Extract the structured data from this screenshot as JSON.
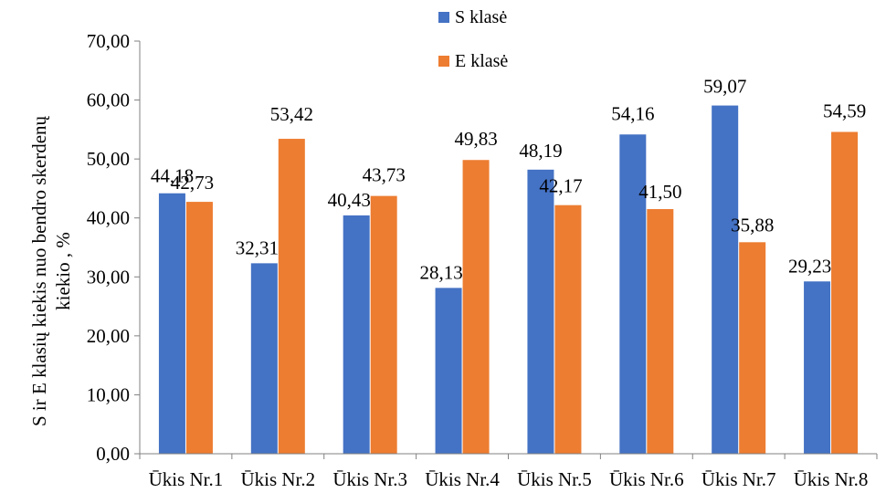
{
  "chart_data": {
    "type": "bar",
    "title": "",
    "xlabel": "",
    "ylabel": "S ir E klasių kiekis nuo bendro skerdenų kiekio , %",
    "ylabel_lines": [
      "S ir E klasių kiekis nuo bendro skerdenų",
      "kiekio , %"
    ],
    "ylim": [
      0,
      70
    ],
    "yticks": [
      0,
      10,
      20,
      30,
      40,
      50,
      60,
      70
    ],
    "ytick_labels": [
      "0,00",
      "10,00",
      "20,00",
      "30,00",
      "40,00",
      "50,00",
      "60,00",
      "70,00"
    ],
    "grid": false,
    "legend_position": "top-center",
    "categories": [
      "Ūkis Nr.1",
      "Ūkis Nr.2",
      "Ūkis Nr.3",
      "Ūkis Nr.4",
      "Ūkis Nr.5",
      "Ūkis Nr.6",
      "Ūkis Nr.7",
      "Ūkis Nr.8"
    ],
    "series": [
      {
        "name": "S klasė",
        "color": "#4472c4",
        "values": [
          44.18,
          32.31,
          40.43,
          28.13,
          48.19,
          54.16,
          59.07,
          29.23
        ],
        "labels": [
          "44,18",
          "32,31",
          "40,43",
          "28,13",
          "48,19",
          "54,16",
          "59,07",
          "29,23"
        ]
      },
      {
        "name": "E klasė",
        "color": "#ed7d31",
        "values": [
          42.73,
          53.42,
          43.73,
          49.83,
          42.17,
          41.5,
          35.88,
          54.59
        ],
        "labels": [
          "42,73",
          "53,42",
          "43,73",
          "49,83",
          "42,17",
          "41,50",
          "35,88",
          "54,59"
        ]
      }
    ]
  }
}
